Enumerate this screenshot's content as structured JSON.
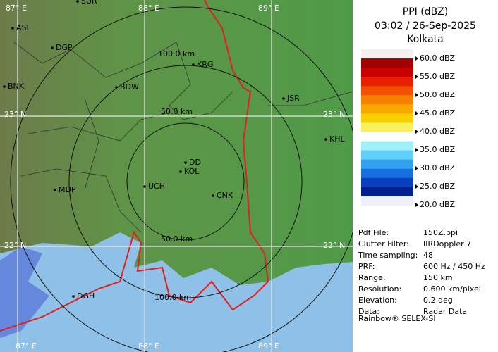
{
  "header": {
    "title": "PPI (dBZ)",
    "time": "03:02 / 26-Sep-2025",
    "site": "Kolkata"
  },
  "legend": {
    "labels": [
      "60.0 dBZ",
      "55.0 dBZ",
      "50.0 dBZ",
      "45.0 dBZ",
      "40.0 dBZ",
      "35.0 dBZ",
      "30.0 dBZ",
      "25.0 dBZ",
      "20.0 dBZ"
    ],
    "colors": [
      "#f4f0f0",
      "#a00000",
      "#c80000",
      "#e82000",
      "#f05000",
      "#f88000",
      "#f8a800",
      "#f8d000",
      "#f8f060",
      "#ffffff",
      "#a0f0f8",
      "#60d0f8",
      "#30a0f0",
      "#1870e0",
      "#0840c0",
      "#002090",
      "#f0f0f8"
    ]
  },
  "info": [
    [
      "Pdf File:",
      "150Z.ppi"
    ],
    [
      "Clutter Filter:",
      "IIRDoppler 7"
    ],
    [
      "Time sampling:",
      "48"
    ],
    [
      "PRF:",
      "600 Hz / 450 Hz"
    ],
    [
      "Range:",
      "150 km"
    ],
    [
      "Resolution:",
      "0.600 km/pixel"
    ],
    [
      "Elevation:",
      "0.2 deg"
    ],
    [
      "Data:",
      "Radar Data"
    ]
  ],
  "footer": "Rainbow® SELEX-SI",
  "map": {
    "grid_labels": [
      "87° E",
      "88° E",
      "89° E",
      "23° N",
      "23° N",
      "22° N",
      "22° N",
      "87° E",
      "88° E",
      "89° E"
    ],
    "ring_labels": [
      "100.0 km",
      "50.0 km",
      "50.0 km",
      "100.0 km"
    ],
    "places": [
      "SUR",
      "ASL",
      "DGP",
      "KRG",
      "BDW",
      "BNK",
      "JSR",
      "KHL",
      "DD",
      "KOL",
      "UCH",
      "CNK",
      "MDP",
      "DGH"
    ]
  }
}
